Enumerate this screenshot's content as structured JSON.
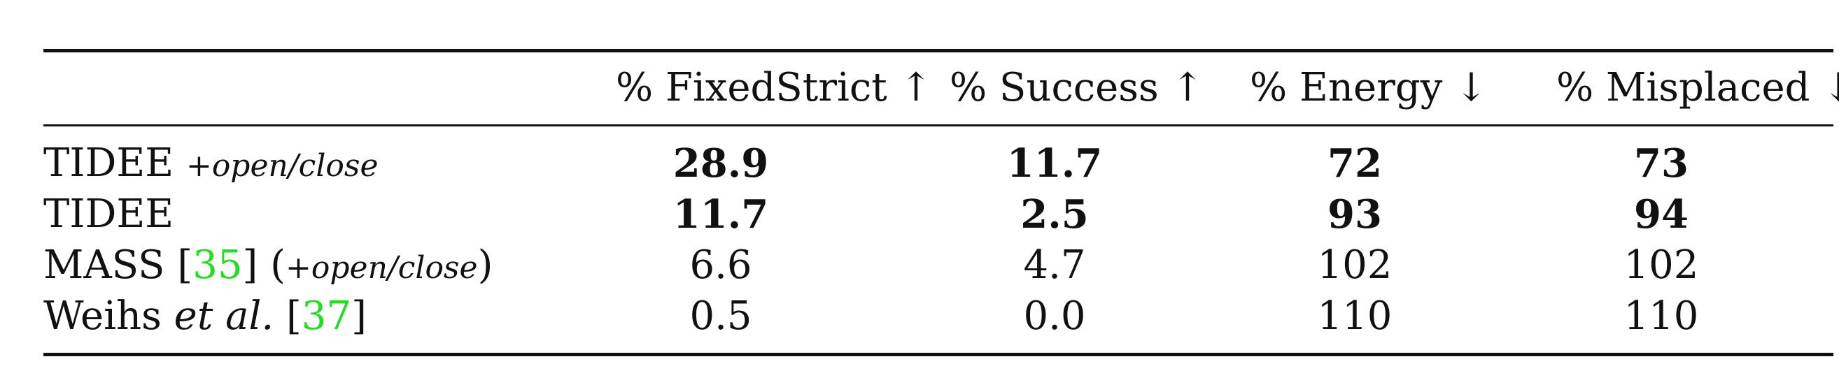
{
  "table": {
    "headers": [
      "% FixedStrict ↑",
      "% Success ↑",
      "% Energy ↓",
      "% Misplaced ↓"
    ],
    "rows": [
      {
        "method": "TIDEE",
        "suffix": "+open/close",
        "values": [
          "28.9",
          "11.7",
          "72",
          "73"
        ]
      },
      {
        "method": "TIDEE",
        "values": [
          "11.7",
          "2.5",
          "93",
          "94"
        ]
      },
      {
        "method": "MASS",
        "cite_open": "[",
        "cite": "35",
        "cite_close": "]",
        "paren_open": "(",
        "suffix": "+open/close",
        "paren_close": ")",
        "values": [
          "6.6",
          "4.7",
          "102",
          "102"
        ]
      },
      {
        "method": "Weihs",
        "etal": "et al.",
        "cite_open": "[",
        "cite": "37",
        "cite_close": "]",
        "values": [
          "0.5",
          "0.0",
          "110",
          "110"
        ]
      }
    ],
    "colors": {
      "citation": "#22dd22",
      "text": "#111111"
    }
  }
}
